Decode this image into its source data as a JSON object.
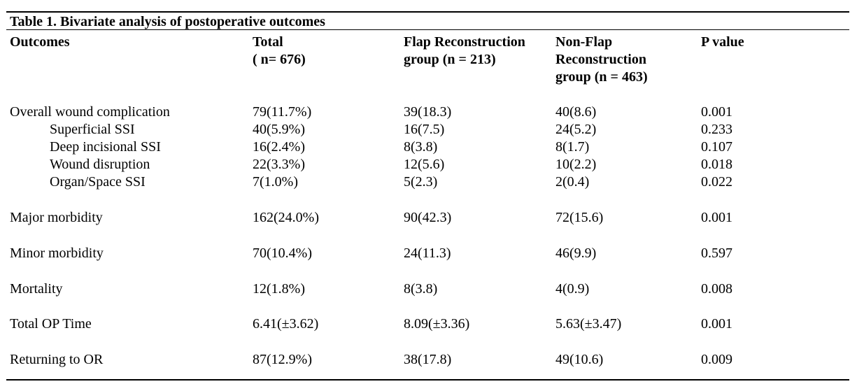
{
  "caption": "Table 1. Bivariate analysis of postoperative outcomes",
  "headers": {
    "outcomes": "Outcomes",
    "total_line1": "Total",
    "total_line2": "( n= 676)",
    "flap_line1": "Flap Reconstruction",
    "flap_line2": "group (n = 213)",
    "nonflap_line1": "Non-Flap",
    "nonflap_line2": "Reconstruction",
    "nonflap_line3": "group (n = 463)",
    "pvalue": "P value"
  },
  "rows": [
    {
      "outcome": "Overall wound complication",
      "total": "79(11.7%)",
      "flap": "39(18.3)",
      "nonflap": "40(8.6)",
      "p": "0.001"
    },
    {
      "outcome": "Superficial SSI",
      "total": "40(5.9%)",
      "flap": "16(7.5)",
      "nonflap": "24(5.2)",
      "p": "0.233"
    },
    {
      "outcome": "Deep incisional SSI",
      "total": "16(2.4%)",
      "flap": "8(3.8)",
      "nonflap": "8(1.7)",
      "p": "0.107"
    },
    {
      "outcome": "Wound disruption",
      "total": "22(3.3%)",
      "flap": "12(5.6)",
      "nonflap": "10(2.2)",
      "p": "0.018"
    },
    {
      "outcome": "Organ/Space SSI",
      "total": "7(1.0%)",
      "flap": "5(2.3)",
      "nonflap": "2(0.4)",
      "p": "0.022"
    },
    {
      "outcome": "Major morbidity",
      "total": "162(24.0%)",
      "flap": "90(42.3)",
      "nonflap": "72(15.6)",
      "p": "0.001"
    },
    {
      "outcome": "Minor morbidity",
      "total": "70(10.4%)",
      "flap": "24(11.3)",
      "nonflap": "46(9.9)",
      "p": "0.597"
    },
    {
      "outcome": "Mortality",
      "total": "12(1.8%)",
      "flap": "8(3.8)",
      "nonflap": "4(0.9)",
      "p": "0.008"
    },
    {
      "outcome": "Total OP Time",
      "total": "6.41(±3.62)",
      "flap": "8.09(±3.36)",
      "nonflap": "5.63(±3.47)",
      "p": "0.001"
    },
    {
      "outcome": "Returning to OR",
      "total": "87(12.9%)",
      "flap": "38(17.8)",
      "nonflap": "49(10.6)",
      "p": "0.009"
    }
  ]
}
